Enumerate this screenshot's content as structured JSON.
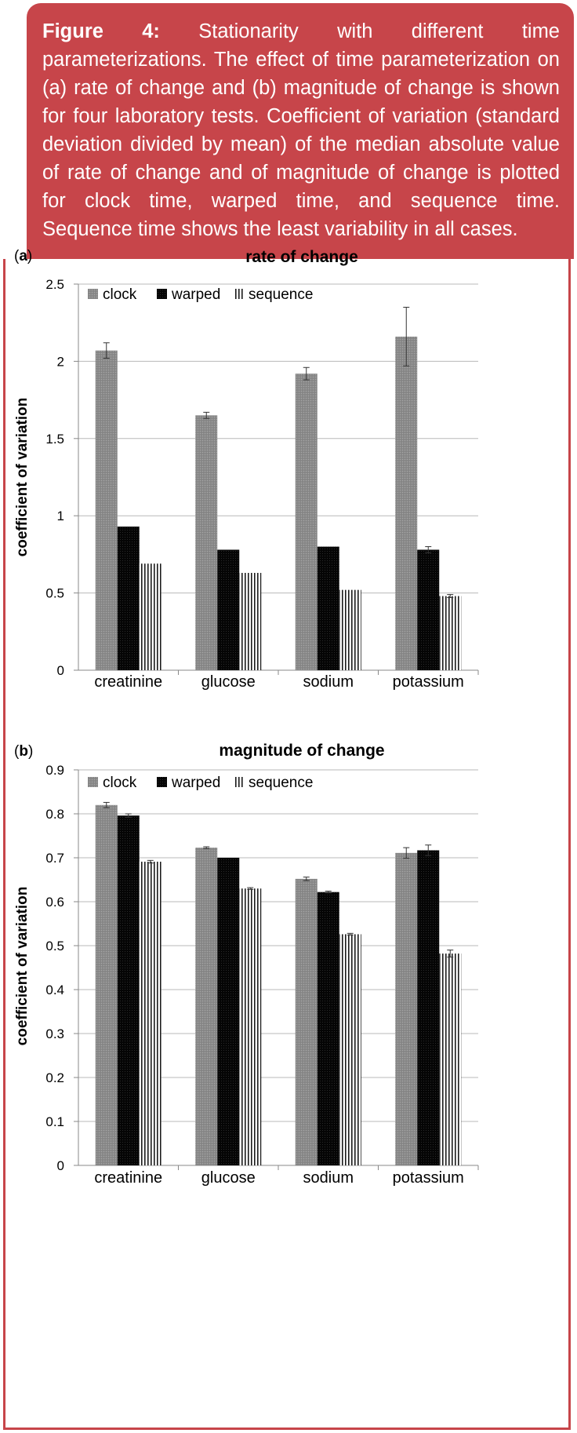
{
  "caption": {
    "label": "Figure 4:",
    "text": "Stationarity with different time parameterizations. The effect of time parameterization on (a) rate of change and (b) magnitude of change is shown for four laboratory tests. Coefficient of variation (standard deviation divided by mean) of the median absolute value of rate of change and of magnitude of change is plotted for clock time, warped time, and sequence time. Sequence time shows the least variability in all cases."
  },
  "colors": {
    "accent": "#c7454a",
    "clock": "#8c8c8c",
    "warped": "#050505",
    "sequence": "#ffffff"
  },
  "chart_data": [
    {
      "type": "bar",
      "panel_label": "a",
      "title": "rate of change",
      "xlabel": "",
      "ylabel": "coefficient of variation",
      "categories": [
        "creatinine",
        "glucose",
        "sodium",
        "potassium"
      ],
      "ylim": [
        0,
        2.5
      ],
      "yticks": [
        "0",
        "0.5",
        "1",
        "1.5",
        "2",
        "2.5"
      ],
      "grid": true,
      "legend_position": "top",
      "series": [
        {
          "name": "clock",
          "values": [
            2.07,
            1.65,
            1.92,
            2.16
          ],
          "errors": [
            0.05,
            0.02,
            0.04,
            0.19
          ]
        },
        {
          "name": "warped",
          "values": [
            0.93,
            0.78,
            0.8,
            0.78
          ],
          "errors": [
            0.0,
            0.0,
            0.0,
            0.02
          ]
        },
        {
          "name": "sequence",
          "values": [
            0.69,
            0.63,
            0.52,
            0.48
          ],
          "errors": [
            0.0,
            0.0,
            0.0,
            0.01
          ]
        }
      ]
    },
    {
      "type": "bar",
      "panel_label": "b",
      "title": "magnitude of change",
      "xlabel": "",
      "ylabel": "coefficient of variation",
      "categories": [
        "creatinine",
        "glucose",
        "sodium",
        "potassium"
      ],
      "ylim": [
        0,
        0.9
      ],
      "yticks": [
        "0",
        "0.1",
        "0.2",
        "0.3",
        "0.4",
        "0.5",
        "0.6",
        "0.7",
        "0.8",
        "0.9"
      ],
      "grid": true,
      "legend_position": "top",
      "series": [
        {
          "name": "clock",
          "values": [
            0.82,
            0.723,
            0.652,
            0.711
          ],
          "errors": [
            0.006,
            0.002,
            0.004,
            0.012
          ]
        },
        {
          "name": "warped",
          "values": [
            0.796,
            0.7,
            0.622,
            0.717
          ],
          "errors": [
            0.004,
            0.0,
            0.002,
            0.012
          ]
        },
        {
          "name": "sequence",
          "values": [
            0.691,
            0.63,
            0.526,
            0.482
          ],
          "errors": [
            0.003,
            0.002,
            0.002,
            0.008
          ]
        }
      ]
    }
  ]
}
